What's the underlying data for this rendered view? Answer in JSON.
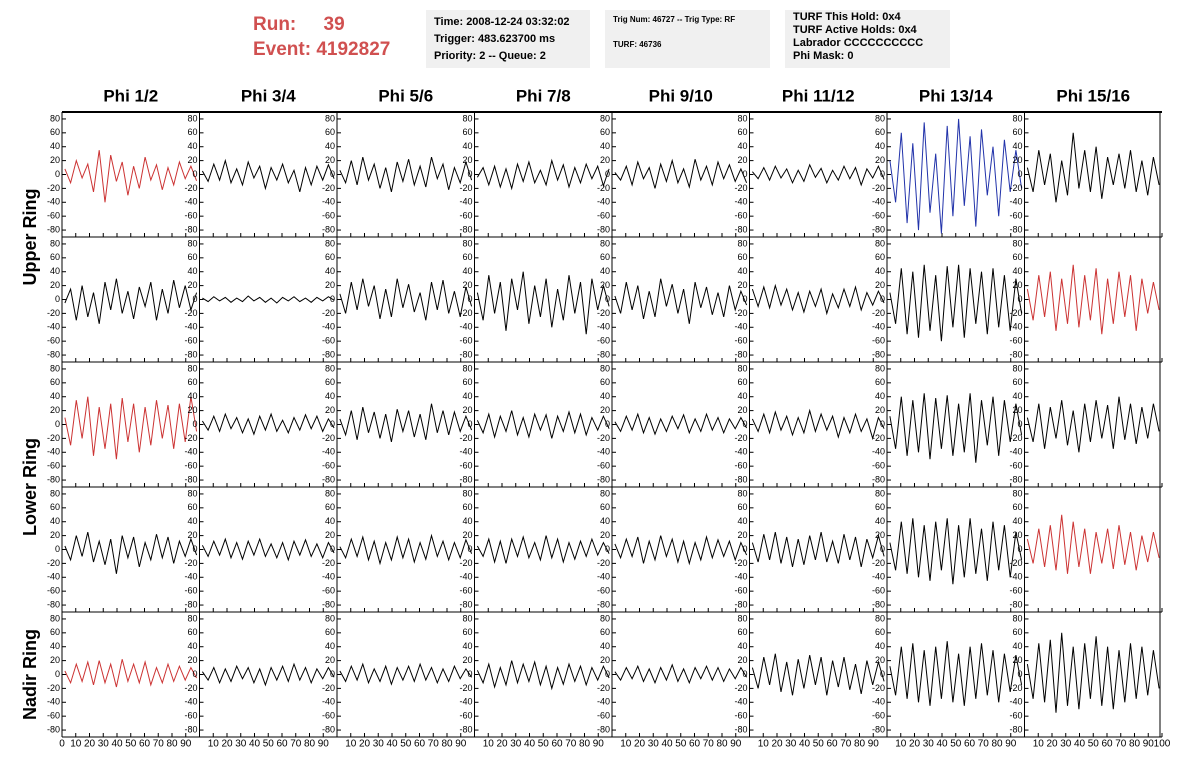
{
  "header": {
    "run_label": "Run:",
    "run": "39",
    "event_label": "Event:",
    "event": "4192827"
  },
  "info": [
    [
      "Time: 2008-12-24 03:32:02",
      "Trigger: 483.623700 ms",
      "Priority: 2 -- Queue: 2"
    ],
    [
      "Trig Num: 46727 -- Trig Type: RF",
      "TURF: 46736"
    ],
    [
      "TURF This Hold: 0x4",
      "TURF Active Holds: 0x4",
      "Labrador CCCCCCCCCC",
      "Phi Mask: 0"
    ]
  ],
  "columns": [
    "Phi 1/2",
    "Phi 3/4",
    "Phi 5/6",
    "Phi 7/8",
    "Phi 9/10",
    "Phi 11/12",
    "Phi 13/14",
    "Phi 15/16"
  ],
  "rows": [
    "Upper Ring",
    "Lower Ring",
    "Nadir Ring"
  ],
  "ylim": [
    -90,
    90
  ],
  "yticks": [
    -80,
    -60,
    -40,
    -20,
    0,
    20,
    40,
    60,
    80
  ],
  "xlim": [
    0,
    100
  ],
  "xticks": [
    0,
    10,
    20,
    30,
    40,
    50,
    60,
    70,
    80,
    90,
    100
  ],
  "panels": [
    [
      {
        "color": "#cc3333",
        "values": [
          8,
          -12,
          20,
          -5,
          15,
          -25,
          35,
          -40,
          28,
          -10,
          18,
          -30,
          12,
          -20,
          25,
          -8,
          14,
          -22,
          10,
          -15,
          18,
          -6,
          12,
          -9
        ]
      },
      {
        "color": "#000000",
        "values": [
          5,
          -10,
          15,
          -8,
          20,
          -12,
          8,
          -15,
          18,
          -5,
          12,
          -20,
          10,
          -8,
          15,
          -12,
          6,
          -25,
          10,
          -15,
          12,
          -8,
          14,
          -6
        ]
      },
      {
        "color": "#000000",
        "values": [
          6,
          -12,
          20,
          -15,
          25,
          -8,
          15,
          -20,
          10,
          -25,
          18,
          -10,
          22,
          -15,
          12,
          -18,
          25,
          -6,
          15,
          -22,
          10,
          -12,
          18,
          -8
        ]
      },
      {
        "color": "#000000",
        "values": [
          -4,
          10,
          -15,
          12,
          -18,
          8,
          -20,
          15,
          -10,
          18,
          -12,
          6,
          -15,
          20,
          -8,
          14,
          -18,
          10,
          -12,
          15,
          -6,
          12,
          -16,
          8
        ]
      },
      {
        "color": "#000000",
        "values": [
          3,
          -8,
          12,
          -15,
          18,
          -6,
          10,
          -20,
          15,
          -10,
          20,
          -12,
          8,
          -18,
          22,
          -8,
          12,
          -15,
          18,
          -6,
          14,
          -10,
          8,
          -12
        ]
      },
      {
        "color": "#000000",
        "values": [
          4,
          -6,
          10,
          -8,
          12,
          -5,
          8,
          -12,
          6,
          -10,
          14,
          -4,
          9,
          -12,
          6,
          -8,
          12,
          -6,
          10,
          -15,
          8,
          -5,
          12,
          -7
        ]
      },
      {
        "color": "#2233aa",
        "values": [
          20,
          -40,
          60,
          -70,
          45,
          -80,
          75,
          -55,
          30,
          -85,
          70,
          -60,
          80,
          -45,
          55,
          -75,
          65,
          -30,
          40,
          -60,
          50,
          -25,
          35,
          -20
        ]
      },
      {
        "color": "#000000",
        "values": [
          10,
          -25,
          35,
          -15,
          30,
          -40,
          20,
          -30,
          60,
          -20,
          35,
          -25,
          40,
          -35,
          25,
          -15,
          30,
          -20,
          35,
          -25,
          20,
          -30,
          25,
          -15
        ]
      }
    ],
    [
      {
        "color": "#000000",
        "values": [
          -5,
          15,
          -30,
          20,
          -25,
          10,
          -35,
          25,
          -15,
          30,
          -20,
          12,
          -28,
          18,
          -10,
          25,
          -30,
          15,
          -20,
          28,
          -12,
          20,
          -15,
          10
        ]
      },
      {
        "color": "#000000",
        "values": [
          2,
          -3,
          4,
          -2,
          3,
          -4,
          2,
          -3,
          5,
          -2,
          3,
          -4,
          2,
          -5,
          3,
          -2,
          4,
          -3,
          2,
          -4,
          3,
          -2,
          4,
          -1
        ]
      },
      {
        "color": "#000000",
        "values": [
          8,
          -20,
          25,
          -15,
          30,
          -10,
          20,
          -28,
          15,
          -25,
          30,
          -12,
          22,
          -18,
          10,
          -30,
          25,
          -15,
          28,
          -20,
          12,
          -25,
          18,
          -10
        ]
      },
      {
        "color": "#000000",
        "values": [
          10,
          -30,
          35,
          -20,
          25,
          -45,
          30,
          -15,
          40,
          -35,
          20,
          -25,
          30,
          -40,
          15,
          -30,
          35,
          -20,
          25,
          -50,
          30,
          -15,
          20,
          -10
        ]
      },
      {
        "color": "#000000",
        "values": [
          5,
          -20,
          25,
          -15,
          20,
          -28,
          12,
          -25,
          30,
          -10,
          22,
          -20,
          15,
          -35,
          25,
          -12,
          18,
          -22,
          10,
          -25,
          20,
          -15,
          12,
          -8
        ]
      },
      {
        "color": "#000000",
        "values": [
          15,
          -10,
          18,
          -12,
          20,
          -8,
          15,
          -15,
          10,
          -18,
          12,
          -10,
          15,
          -20,
          8,
          -12,
          15,
          -10,
          18,
          -15,
          10,
          -8,
          12,
          -5
        ]
      },
      {
        "color": "#000000",
        "values": [
          10,
          -35,
          45,
          -50,
          40,
          -55,
          50,
          -45,
          35,
          -60,
          48,
          -40,
          50,
          -55,
          45,
          -35,
          40,
          -50,
          45,
          -40,
          35,
          -45,
          30,
          -20
        ]
      },
      {
        "color": "#cc3333",
        "values": [
          15,
          -30,
          35,
          -25,
          40,
          -45,
          30,
          -35,
          50,
          -40,
          35,
          -30,
          45,
          -50,
          30,
          -35,
          40,
          -25,
          35,
          -45,
          30,
          -20,
          25,
          -15
        ]
      }
    ],
    [
      {
        "color": "#cc3333",
        "values": [
          10,
          -30,
          35,
          -20,
          40,
          -45,
          25,
          -35,
          30,
          -50,
          38,
          -25,
          30,
          -40,
          25,
          -30,
          35,
          -20,
          28,
          -35,
          30,
          -25,
          40,
          -10
        ]
      },
      {
        "color": "#000000",
        "values": [
          5,
          -8,
          12,
          -10,
          15,
          -6,
          10,
          -12,
          8,
          -14,
          12,
          -8,
          15,
          -10,
          6,
          -12,
          10,
          -8,
          14,
          -6,
          12,
          -10,
          8,
          -5
        ]
      },
      {
        "color": "#000000",
        "values": [
          8,
          -15,
          20,
          -22,
          25,
          -12,
          18,
          -20,
          15,
          -25,
          22,
          -10,
          20,
          -18,
          15,
          -22,
          30,
          -12,
          20,
          -15,
          18,
          -10,
          12,
          -8
        ]
      },
      {
        "color": "#000000",
        "values": [
          6,
          -12,
          15,
          -18,
          12,
          -10,
          20,
          -15,
          10,
          -18,
          15,
          -8,
          14,
          -20,
          12,
          -10,
          18,
          -12,
          15,
          -15,
          10,
          -8,
          12,
          -6
        ]
      },
      {
        "color": "#000000",
        "values": [
          4,
          -10,
          12,
          -8,
          15,
          -12,
          10,
          -14,
          8,
          -10,
          12,
          -6,
          14,
          -12,
          8,
          -10,
          15,
          -8,
          10,
          -12,
          8,
          -6,
          10,
          -5
        ]
      },
      {
        "color": "#000000",
        "values": [
          8,
          -10,
          15,
          -12,
          18,
          -8,
          12,
          -15,
          10,
          -12,
          20,
          -10,
          15,
          -8,
          12,
          -18,
          10,
          -12,
          15,
          -10,
          8,
          -20,
          10,
          -6
        ]
      },
      {
        "color": "#000000",
        "values": [
          12,
          -35,
          40,
          -45,
          35,
          -40,
          45,
          -50,
          38,
          -35,
          42,
          -45,
          30,
          -40,
          45,
          -55,
          35,
          -30,
          40,
          -45,
          35,
          -25,
          30,
          -15
        ]
      },
      {
        "color": "#000000",
        "values": [
          10,
          -25,
          30,
          -35,
          25,
          -20,
          35,
          -30,
          20,
          -40,
          30,
          -25,
          35,
          -20,
          28,
          -35,
          40,
          -22,
          30,
          -28,
          25,
          -20,
          30,
          -10
        ]
      }
    ],
    [
      {
        "color": "#000000",
        "values": [
          5,
          -15,
          20,
          -10,
          25,
          -18,
          12,
          -22,
          15,
          -35,
          20,
          -12,
          18,
          -25,
          10,
          -15,
          22,
          -12,
          18,
          -20,
          12,
          -10,
          15,
          -8
        ]
      },
      {
        "color": "#000000",
        "values": [
          6,
          -10,
          12,
          -8,
          15,
          -12,
          10,
          -14,
          12,
          -8,
          15,
          -10,
          8,
          -12,
          10,
          -15,
          12,
          -8,
          14,
          -10,
          8,
          -12,
          10,
          -5
        ]
      },
      {
        "color": "#000000",
        "values": [
          4,
          -12,
          15,
          -10,
          18,
          -15,
          12,
          -20,
          10,
          -15,
          18,
          -12,
          15,
          -18,
          10,
          -14,
          20,
          -10,
          12,
          -15,
          10,
          -12,
          14,
          -6
        ]
      },
      {
        "color": "#000000",
        "values": [
          5,
          -10,
          15,
          -18,
          12,
          -20,
          15,
          -10,
          18,
          -12,
          10,
          -15,
          20,
          -12,
          15,
          -18,
          10,
          -14,
          12,
          -10,
          15,
          -8,
          10,
          -6
        ]
      },
      {
        "color": "#000000",
        "values": [
          8,
          -12,
          15,
          -10,
          18,
          -20,
          12,
          -15,
          20,
          -10,
          15,
          -18,
          12,
          -20,
          10,
          -15,
          18,
          -12,
          14,
          -10,
          12,
          -15,
          10,
          -8
        ]
      },
      {
        "color": "#000000",
        "values": [
          10,
          -18,
          22,
          -15,
          25,
          -20,
          18,
          -25,
          15,
          -22,
          20,
          -15,
          25,
          -18,
          12,
          -20,
          22,
          -15,
          18,
          -25,
          15,
          -12,
          20,
          -10
        ]
      },
      {
        "color": "#000000",
        "values": [
          10,
          -30,
          40,
          -35,
          45,
          -40,
          35,
          -45,
          40,
          -30,
          45,
          -50,
          35,
          -40,
          45,
          -35,
          30,
          -45,
          40,
          -30,
          35,
          -40,
          25,
          -15
        ]
      },
      {
        "color": "#cc3333",
        "values": [
          15,
          -20,
          30,
          -25,
          35,
          -30,
          50,
          -35,
          40,
          -25,
          30,
          -35,
          25,
          -20,
          30,
          -28,
          35,
          -22,
          25,
          -30,
          20,
          -18,
          25,
          -12
        ]
      }
    ],
    [
      {
        "color": "#cc3333",
        "values": [
          5,
          -12,
          15,
          -10,
          18,
          -15,
          20,
          -12,
          15,
          -18,
          22,
          -10,
          15,
          -12,
          18,
          -15,
          10,
          -12,
          15,
          -10,
          12,
          -8,
          10,
          -5
        ]
      },
      {
        "color": "#000000",
        "values": [
          4,
          -8,
          10,
          -12,
          8,
          -10,
          12,
          -6,
          10,
          -12,
          8,
          -15,
          10,
          -8,
          12,
          -10,
          15,
          -8,
          10,
          -12,
          8,
          -6,
          10,
          -4
        ]
      },
      {
        "color": "#000000",
        "values": [
          5,
          -10,
          12,
          -8,
          15,
          -12,
          8,
          -10,
          12,
          -14,
          10,
          -8,
          12,
          -10,
          15,
          -8,
          10,
          -12,
          8,
          -10,
          12,
          -6,
          8,
          -4
        ]
      },
      {
        "color": "#000000",
        "values": [
          6,
          -12,
          15,
          -18,
          10,
          -15,
          20,
          -12,
          15,
          -10,
          18,
          -15,
          12,
          -20,
          10,
          -14,
          15,
          -10,
          12,
          -15,
          10,
          -8,
          12,
          -5
        ]
      },
      {
        "color": "#000000",
        "values": [
          4,
          -8,
          10,
          -6,
          12,
          -10,
          8,
          -12,
          10,
          -8,
          14,
          -10,
          8,
          -12,
          10,
          -6,
          12,
          -8,
          10,
          -10,
          8,
          -6,
          10,
          -4
        ]
      },
      {
        "color": "#000000",
        "values": [
          10,
          -20,
          25,
          -15,
          30,
          -25,
          18,
          -30,
          22,
          -20,
          28,
          -15,
          25,
          -30,
          20,
          -18,
          25,
          -22,
          15,
          -28,
          20,
          -15,
          18,
          -10
        ]
      },
      {
        "color": "#000000",
        "values": [
          12,
          -30,
          40,
          -35,
          45,
          -40,
          35,
          -45,
          40,
          -35,
          48,
          -40,
          30,
          -45,
          40,
          -35,
          45,
          -30,
          35,
          -40,
          30,
          -25,
          28,
          -15
        ]
      },
      {
        "color": "#000000",
        "values": [
          15,
          -35,
          45,
          -40,
          50,
          -55,
          60,
          -45,
          40,
          -50,
          45,
          -35,
          55,
          -45,
          40,
          -50,
          35,
          -40,
          45,
          -35,
          40,
          -30,
          35,
          -20
        ]
      }
    ]
  ]
}
